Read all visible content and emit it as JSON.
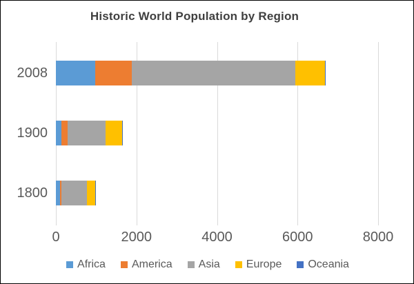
{
  "chart_data": {
    "type": "bar",
    "orientation": "horizontal",
    "stacked": true,
    "title": "Historic World Population by Region",
    "categories": [
      "2008",
      "1900",
      "1800"
    ],
    "series": [
      {
        "name": "Africa",
        "color": "#5B9BD5",
        "values": [
          973,
          133,
          107
        ]
      },
      {
        "name": "America",
        "color": "#ED7D31",
        "values": [
          914,
          156,
          31
        ]
      },
      {
        "name": "Asia",
        "color": "#A5A5A5",
        "values": [
          4054,
          947,
          635
        ]
      },
      {
        "name": "Europe",
        "color": "#FFC000",
        "values": [
          732,
          408,
          203
        ]
      },
      {
        "name": "Oceania",
        "color": "#4472C4",
        "values": [
          31,
          6,
          2
        ]
      }
    ],
    "xlabel": "",
    "ylabel": "",
    "xlim": [
      0,
      8000
    ],
    "xticks": [
      "0",
      "2000",
      "4000",
      "6000",
      "8000"
    ],
    "grid": true,
    "legend_position": "bottom"
  },
  "colors": {
    "background": "#FFFFFF",
    "border": "#000000",
    "gridline": "#D9D9D9",
    "axis_text": "#595959",
    "title_text": "#404040"
  }
}
